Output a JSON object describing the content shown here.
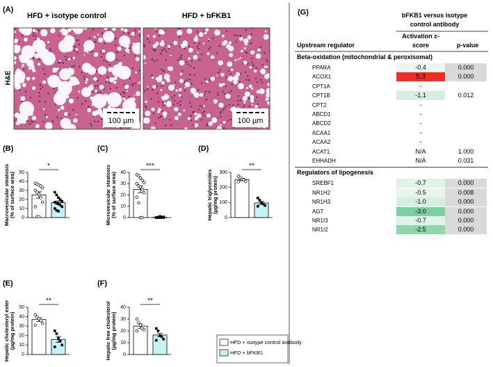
{
  "panel_a": {
    "label": "(A)",
    "stain": "H&E",
    "images": [
      {
        "title": "HFD + isotype control",
        "scale": "100 µm"
      },
      {
        "title": "HFD + bFKB1",
        "scale": "100 µm"
      }
    ]
  },
  "chart_data": [
    {
      "type": "bar",
      "label": "(B)",
      "y_label": [
        "Macrovesicular steatosis",
        "(% of surface area)"
      ],
      "ylim": [
        0,
        50
      ],
      "yticks": [
        0,
        10,
        20,
        30,
        40,
        50
      ],
      "values": [
        25,
        16.5
      ],
      "errors": [
        3.5,
        1.8
      ],
      "points": [
        [
          38,
          37,
          36,
          35,
          33,
          30,
          28,
          26,
          22,
          17,
          12,
          1,
          1
        ],
        [
          28,
          25,
          22,
          20,
          18,
          17,
          16,
          15,
          14,
          12,
          10,
          8,
          7
        ]
      ],
      "significance": "*"
    },
    {
      "type": "bar",
      "label": "(C)",
      "y_label": [
        "Microvesicular steatosis",
        "(% of surface area)"
      ],
      "ylim": [
        0,
        40
      ],
      "yticks": [
        0,
        10,
        20,
        30,
        40
      ],
      "values": [
        25,
        0.3
      ],
      "errors": [
        3,
        0.1
      ],
      "points": [
        [
          38,
          37,
          35,
          33,
          31,
          30,
          28,
          27,
          25,
          22,
          18,
          13,
          0,
          0
        ],
        [
          0,
          0,
          0,
          0.5,
          0.5,
          0,
          0,
          1,
          0,
          0,
          0,
          0.3
        ]
      ],
      "significance": "***"
    },
    {
      "type": "bar",
      "label": "(D)",
      "y_label": [
        "Hepatic triglycerides",
        "(µg/mg protein)"
      ],
      "ylim": [
        0,
        300
      ],
      "yticks": [
        0,
        100,
        200,
        300
      ],
      "values": [
        253,
        97
      ],
      "errors": [
        8,
        10
      ],
      "points": [
        [
          275,
          265,
          255,
          250,
          240,
          238
        ],
        [
          130,
          115,
          100,
          90,
          80,
          75
        ]
      ],
      "significance": "**"
    },
    {
      "type": "bar",
      "label": "(E)",
      "y_label": [
        "Hepatic cholesteryl ester",
        "(µg/mg protein)"
      ],
      "ylim": [
        0,
        50
      ],
      "yticks": [
        0,
        10,
        20,
        30,
        40,
        50
      ],
      "values": [
        37,
        16
      ],
      "errors": [
        2,
        3
      ],
      "points": [
        [
          42,
          40,
          38,
          36,
          33,
          31
        ],
        [
          25,
          22,
          17,
          14,
          10,
          8
        ]
      ],
      "significance": "**"
    },
    {
      "type": "bar",
      "label": "(F)",
      "y_label": [
        "Hepatic free cholesterol",
        "(µg/mg protein)"
      ],
      "ylim": [
        0,
        40
      ],
      "yticks": [
        0,
        10,
        20,
        30,
        40
      ],
      "values": [
        24,
        16.5
      ],
      "errors": [
        1.8,
        1.5
      ],
      "points": [
        [
          30,
          27,
          25,
          22,
          21,
          20
        ],
        [
          22,
          20,
          16,
          15,
          13,
          12
        ]
      ],
      "significance": "**"
    }
  ],
  "legend": {
    "entries": [
      "HFD + isotype control antibody",
      "HFD + bFKB1"
    ],
    "colors": [
      "#ffffff",
      "#c4f2f6"
    ]
  },
  "table": {
    "label": "(G)",
    "group_header": "bFKB1 versus isotype control antibody",
    "columns": [
      "Upstream regulator",
      "Activation z-score",
      "p-value"
    ],
    "sections": [
      {
        "title": "Beta-oxidation (mitochondrial & peroxisomal)",
        "rows": [
          {
            "gene": "PPARA",
            "z": "-0.4",
            "p": "0.000",
            "z_color": "#eaf7f0",
            "p_color": "#d9d9d9"
          },
          {
            "gene": "ACOX1",
            "z": "5.3",
            "p": "0.000",
            "z_color": "#ee2d24",
            "p_color": "#d9d9d9"
          },
          {
            "gene": "CPT1A",
            "z": "-"
          },
          {
            "gene": "CPT1B",
            "z": "-1.1",
            "p": "0.012",
            "z_color": "#d3eedc"
          },
          {
            "gene": "CPT2",
            "z": "-"
          },
          {
            "gene": "ABCD1",
            "z": "-"
          },
          {
            "gene": "ABCD2",
            "z": "-"
          },
          {
            "gene": "ACAA1",
            "z": "-"
          },
          {
            "gene": "ACAA2",
            "z": "-"
          },
          {
            "gene": "ACAT1",
            "z": "N/A",
            "p": "1.000"
          },
          {
            "gene": "EHHADH",
            "z": "N/A",
            "p": "0.031"
          }
        ]
      },
      {
        "title": "Regulators of lipogenesis",
        "rows": [
          {
            "gene": "SREBF1",
            "z": "-0.7",
            "p": "0.000",
            "z_color": "#e1f3e8",
            "p_color": "#d9d9d9"
          },
          {
            "gene": "NR1H2",
            "z": "-0.5",
            "p": "0.008",
            "z_color": "#e7f6ed",
            "p_color": "#d9d9d9"
          },
          {
            "gene": "NR1H3",
            "z": "-1.0",
            "p": "0.000",
            "z_color": "#d5efdf",
            "p_color": "#d9d9d9"
          },
          {
            "gene": "AGT",
            "z": "-3.0",
            "p": "0.000",
            "z_color": "#7ccf9f",
            "p_color": "#d9d9d9"
          },
          {
            "gene": "NR1I3",
            "z": "-0.7",
            "p": "0.000",
            "z_color": "#e1f3e8",
            "p_color": "#d9d9d9"
          },
          {
            "gene": "NR1I2",
            "z": "-2.5",
            "p": "0.000",
            "z_color": "#8fd7ab",
            "p_color": "#d9d9d9"
          }
        ]
      }
    ]
  }
}
